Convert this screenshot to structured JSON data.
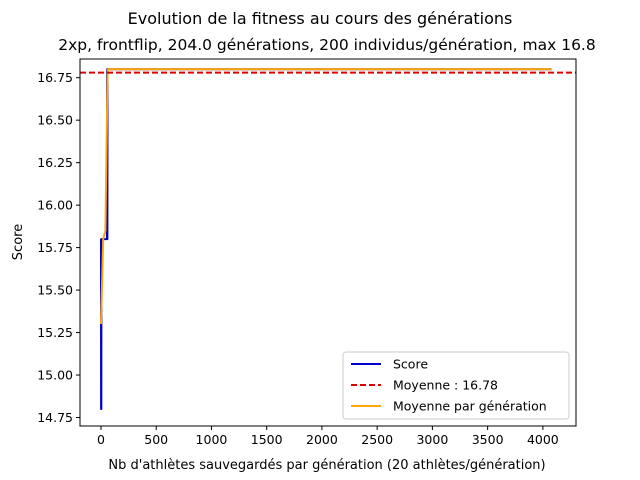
{
  "chart_data": {
    "type": "line",
    "suptitle": "Evolution de la fitness au cours des générations",
    "title": "2xp, frontflip, 204.0 générations, 200 individus/génération, max 16.8",
    "xlabel": "Nb d'athlètes sauvegardés par génération (20 athlètes/génération)",
    "ylabel": "Score",
    "xlim": [
      -190,
      4300
    ],
    "ylim": [
      14.7,
      16.86
    ],
    "xticks": [
      0,
      500,
      1000,
      1500,
      2000,
      2500,
      3000,
      3500,
      4000
    ],
    "xtick_labels": [
      "0",
      "500",
      "1000",
      "1500",
      "2000",
      "2500",
      "3000",
      "3500",
      "4000"
    ],
    "yticks": [
      14.75,
      15.0,
      15.25,
      15.5,
      15.75,
      16.0,
      16.25,
      16.5,
      16.75
    ],
    "ytick_labels": [
      "14.75",
      "15.00",
      "15.25",
      "15.50",
      "15.75",
      "16.00",
      "16.25",
      "16.50",
      "16.75"
    ],
    "series": [
      {
        "name": "Score",
        "color": "#0000cc",
        "style": "solid",
        "x": [
          0,
          1,
          2,
          3,
          4,
          5,
          6,
          7,
          8,
          9,
          10,
          11,
          12,
          13,
          14,
          15,
          16,
          17,
          18,
          19,
          20,
          21,
          22,
          23,
          24,
          25,
          26,
          27,
          28,
          29,
          30,
          31,
          32,
          33,
          34,
          35,
          36,
          37,
          38,
          39,
          40,
          41,
          42,
          43,
          44,
          45,
          46,
          47,
          48,
          49,
          50,
          51,
          52,
          53,
          54,
          55,
          56,
          57,
          58,
          59,
          60,
          61,
          4079
        ],
        "y": [
          15.8,
          14.8,
          15.8,
          14.8,
          15.8,
          15.8,
          15.8,
          15.8,
          15.8,
          15.8,
          15.8,
          15.8,
          15.8,
          15.8,
          15.8,
          15.8,
          15.8,
          15.8,
          15.8,
          15.8,
          15.8,
          15.8,
          15.8,
          15.8,
          15.8,
          15.8,
          15.8,
          15.8,
          15.8,
          15.8,
          15.8,
          15.8,
          15.8,
          15.8,
          15.8,
          15.8,
          15.8,
          15.8,
          15.8,
          15.8,
          15.8,
          15.8,
          15.8,
          15.8,
          15.8,
          15.8,
          15.8,
          15.8,
          15.8,
          15.8,
          15.8,
          15.8,
          15.8,
          15.8,
          15.8,
          16.8,
          15.8,
          16.8,
          15.8,
          16.8,
          16.8,
          16.8,
          16.8
        ]
      },
      {
        "name": "Moyenne : 16.78",
        "color": "#dd0000",
        "style": "dashed",
        "y_const": 16.78
      },
      {
        "name": "Moyenne par génération",
        "color": "#ffa500",
        "style": "solid",
        "x": [
          0,
          20,
          40,
          60,
          80,
          4079
        ],
        "y": [
          15.3,
          15.8,
          15.85,
          16.8,
          16.8,
          16.8
        ]
      }
    ],
    "legend": "lower-right",
    "grid": false
  }
}
